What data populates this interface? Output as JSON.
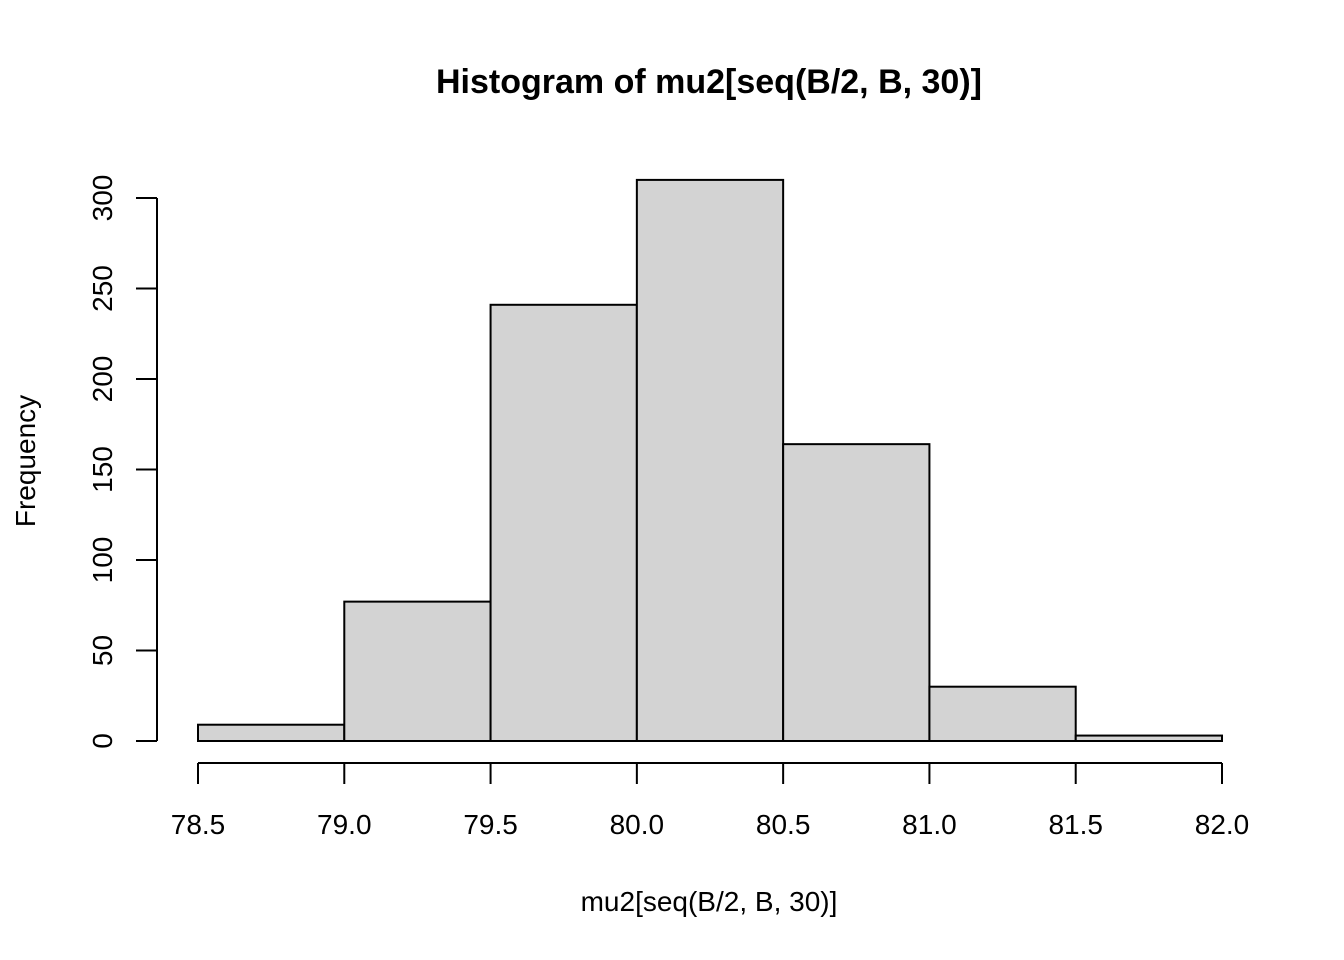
{
  "chart_data": {
    "type": "bar",
    "title": "Histogram of mu2[seq(B/2, B, 30)]",
    "xlabel": "mu2[seq(B/2, B, 30)]",
    "ylabel": "Frequency",
    "bins": [
      {
        "start": 78.5,
        "end": 79.0,
        "count": 9
      },
      {
        "start": 79.0,
        "end": 79.5,
        "count": 77
      },
      {
        "start": 79.5,
        "end": 80.0,
        "count": 241
      },
      {
        "start": 80.0,
        "end": 80.5,
        "count": 310
      },
      {
        "start": 80.5,
        "end": 81.0,
        "count": 164
      },
      {
        "start": 81.0,
        "end": 81.5,
        "count": 30
      },
      {
        "start": 81.5,
        "end": 82.0,
        "count": 3
      }
    ],
    "xlim": [
      78.5,
      82.0
    ],
    "ylim": [
      0,
      300
    ],
    "x_ticks": [
      "78.5",
      "79.0",
      "79.5",
      "80.0",
      "80.5",
      "81.0",
      "81.5",
      "82.0"
    ],
    "y_ticks": [
      "0",
      "50",
      "100",
      "150",
      "200",
      "250",
      "300"
    ],
    "grid": false,
    "bar_color": "#d3d3d3",
    "edge_color": "#000000"
  }
}
